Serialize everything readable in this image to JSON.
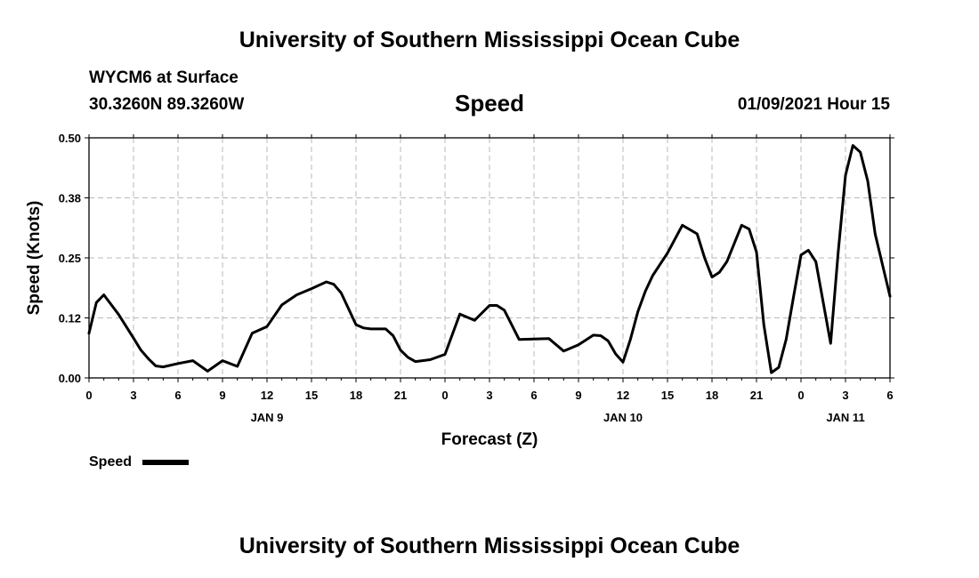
{
  "header": {
    "top_title": "University of Southern Mississippi Ocean Cube",
    "bottom_title": "University of Southern Mississippi Ocean Cube",
    "station": "WYCM6 at Surface",
    "coords": "30.3260N 89.3260W",
    "variable": "Speed",
    "datetime": "01/09/2021 Hour 15"
  },
  "colors": {
    "line": "#000000",
    "grid": "#b8b8b8",
    "axis": "#000000"
  },
  "chart_data": {
    "type": "line",
    "title": "Speed",
    "xlabel": "Forecast (Z)",
    "ylabel": "Speed (Knots)",
    "xlim": [
      0,
      54
    ],
    "ylim": [
      0,
      0.5
    ],
    "grid": true,
    "legend_placement": "bottom-left",
    "y_ticks": [
      {
        "value": 0.0,
        "label": "0.00"
      },
      {
        "value": 0.125,
        "label": "0.12"
      },
      {
        "value": 0.25,
        "label": "0.25"
      },
      {
        "value": 0.375,
        "label": "0.38"
      },
      {
        "value": 0.5,
        "label": "0.50"
      }
    ],
    "x_ticks": [
      {
        "hour": 0,
        "label": "0"
      },
      {
        "hour": 3,
        "label": "3"
      },
      {
        "hour": 6,
        "label": "6"
      },
      {
        "hour": 9,
        "label": "9"
      },
      {
        "hour": 12,
        "label": "12"
      },
      {
        "hour": 15,
        "label": "15"
      },
      {
        "hour": 18,
        "label": "18"
      },
      {
        "hour": 21,
        "label": "21"
      },
      {
        "hour": 24,
        "label": "0"
      },
      {
        "hour": 27,
        "label": "3"
      },
      {
        "hour": 30,
        "label": "6"
      },
      {
        "hour": 33,
        "label": "9"
      },
      {
        "hour": 36,
        "label": "12"
      },
      {
        "hour": 39,
        "label": "15"
      },
      {
        "hour": 42,
        "label": "18"
      },
      {
        "hour": 45,
        "label": "21"
      },
      {
        "hour": 48,
        "label": "0"
      },
      {
        "hour": 51,
        "label": "3"
      },
      {
        "hour": 54,
        "label": "6"
      }
    ],
    "day_labels": [
      {
        "hour": 12,
        "label": "JAN 9"
      },
      {
        "hour": 36,
        "label": "JAN 10"
      },
      {
        "hour": 51,
        "label": "JAN 11"
      }
    ],
    "series": [
      {
        "name": "Speed",
        "x": [
          0,
          0.5,
          1,
          2,
          3,
          3.5,
          4,
          4.5,
          5,
          6,
          7,
          8,
          9,
          10,
          11,
          12,
          13,
          14,
          15,
          16,
          16.5,
          17,
          18,
          18.5,
          19,
          20,
          20.5,
          21,
          21.5,
          22,
          23,
          24,
          25,
          26,
          27,
          27.5,
          28,
          29,
          30,
          31,
          32,
          33,
          34,
          34.5,
          35,
          35.5,
          36,
          36.5,
          37,
          37.5,
          38,
          39,
          40,
          41,
          41.5,
          42,
          42.5,
          43,
          44,
          44.5,
          45,
          45.5,
          46,
          46.5,
          47,
          47.5,
          48,
          48.5,
          49,
          50,
          50.5,
          51,
          51.5,
          52,
          52.5,
          53,
          54
        ],
        "y": [
          0.093,
          0.157,
          0.173,
          0.132,
          0.083,
          0.058,
          0.04,
          0.025,
          0.023,
          0.03,
          0.036,
          0.014,
          0.036,
          0.024,
          0.093,
          0.107,
          0.152,
          0.173,
          0.186,
          0.2,
          0.195,
          0.177,
          0.111,
          0.104,
          0.102,
          0.102,
          0.088,
          0.058,
          0.043,
          0.034,
          0.038,
          0.049,
          0.133,
          0.12,
          0.151,
          0.151,
          0.141,
          0.08,
          0.081,
          0.082,
          0.056,
          0.069,
          0.089,
          0.088,
          0.077,
          0.05,
          0.033,
          0.08,
          0.138,
          0.18,
          0.213,
          0.26,
          0.318,
          0.3,
          0.25,
          0.21,
          0.22,
          0.242,
          0.318,
          0.31,
          0.262,
          0.11,
          0.011,
          0.022,
          0.08,
          0.17,
          0.256,
          0.266,
          0.242,
          0.072,
          0.26,
          0.422,
          0.484,
          0.47,
          0.41,
          0.3,
          0.17
        ]
      }
    ]
  },
  "legend": {
    "label": "Speed"
  }
}
